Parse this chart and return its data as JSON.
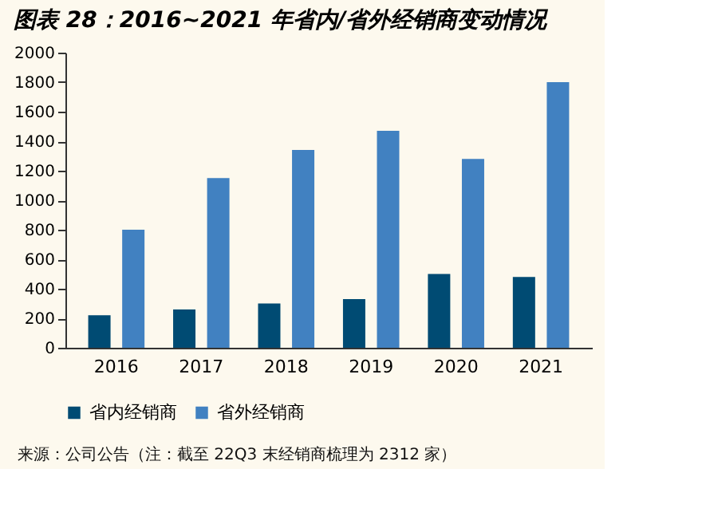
{
  "chart_data": {
    "type": "bar",
    "title": "图表 28：2016~2021 年省内/省外经销商变动情况",
    "categories": [
      "2016",
      "2017",
      "2018",
      "2019",
      "2020",
      "2021"
    ],
    "series": [
      {
        "name": "省内经销商",
        "color": "#004b73",
        "values": [
          220,
          260,
          300,
          330,
          500,
          480
        ]
      },
      {
        "name": "省外经销商",
        "color": "#4181c1",
        "values": [
          800,
          1150,
          1340,
          1470,
          1280,
          1800
        ]
      }
    ],
    "ylim": [
      0,
      2000
    ],
    "yticks": [
      0,
      200,
      400,
      600,
      800,
      1000,
      1200,
      1400,
      1600,
      1800,
      2000
    ],
    "grid": false,
    "legend": "bottom",
    "annotations": [
      "来源：公司公告（注：截至 22Q3 末经销商梳理为 2312 家）"
    ]
  }
}
